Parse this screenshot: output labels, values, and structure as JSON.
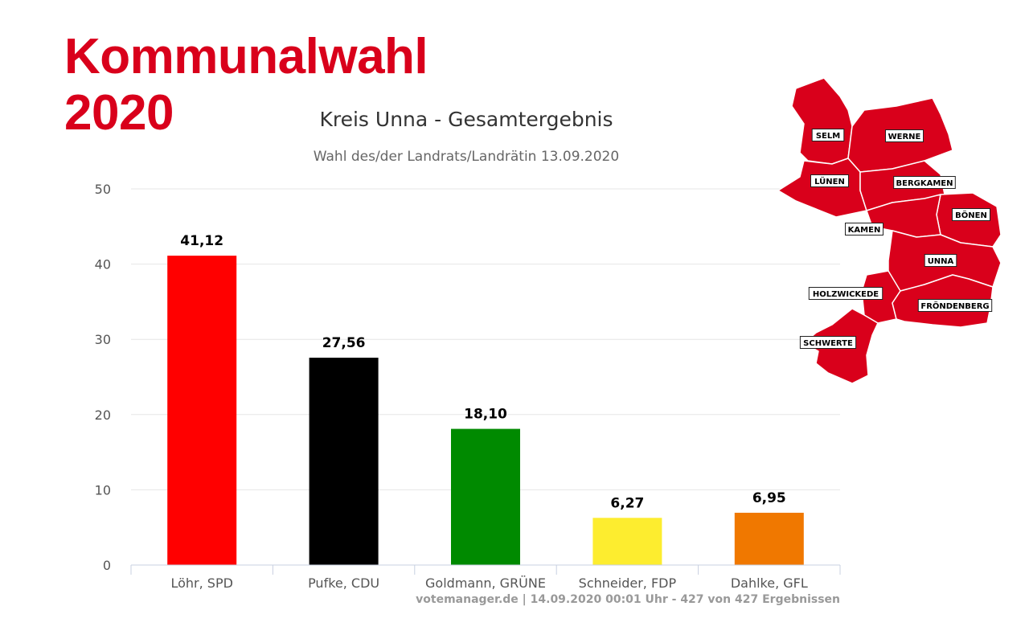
{
  "brand": {
    "line1": "Kommunalwahl",
    "line2": "2020",
    "color": "#d9001b"
  },
  "chart_data": {
    "type": "bar",
    "title": "Kreis Unna - Gesamtergebnis",
    "subtitle": "Wahl des/der Landrats/Landrätin 13.09.2020",
    "categories": [
      "Löhr, SPD",
      "Pufke, CDU",
      "Goldmann, GRÜNE",
      "Schneider, FDP",
      "Dahlke, GFL"
    ],
    "values": [
      41.12,
      27.56,
      18.1,
      6.27,
      6.95
    ],
    "data_labels": [
      "41,12",
      "27,56",
      "18,10",
      "6,27",
      "6,95"
    ],
    "colors": [
      "#ff0000",
      "#000000",
      "#008a00",
      "#fded2f",
      "#f07800"
    ],
    "ylim": [
      0,
      50
    ],
    "yticks": [
      0,
      10,
      20,
      30,
      40,
      50
    ],
    "grid": true,
    "xlabel": "",
    "ylabel": ""
  },
  "source_note": "votemanager.de | 14.09.2020 00:01 Uhr - 427 von 427 Ergebnissen",
  "map": {
    "fill": "#d9001b",
    "labels": [
      "SELM",
      "WERNE",
      "LÜNEN",
      "BERGKAMEN",
      "BÖNEN",
      "KAMEN",
      "UNNA",
      "HOLZWICKEDE",
      "FRÖNDENBERG",
      "SCHWERTE"
    ]
  }
}
